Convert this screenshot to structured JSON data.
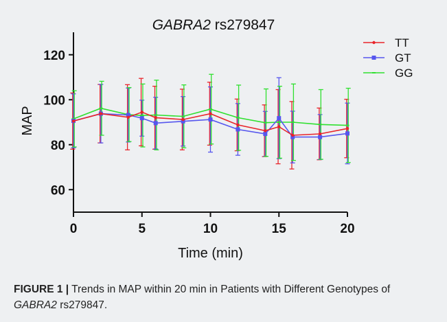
{
  "chart_data": {
    "type": "line",
    "title_gene": "GABRA2",
    "title_rest": " rs279847",
    "xlabel": "Time (min)",
    "ylabel": "MAP",
    "xlim": [
      0,
      20
    ],
    "ylim": [
      50,
      130
    ],
    "xticks": [
      0,
      5,
      10,
      15,
      20
    ],
    "yticks": [
      60,
      80,
      100,
      120
    ],
    "grid": false,
    "legend_position": "top-right",
    "series": [
      {
        "name": "TT",
        "color": "#e8242a",
        "marker": "dot",
        "x": [
          0,
          2,
          4,
          5,
          6,
          8,
          10,
          12,
          14,
          15,
          16,
          18,
          20
        ],
        "y": [
          90.5,
          93.8,
          92.2,
          94.5,
          92.0,
          91.2,
          93.8,
          88.8,
          86.2,
          88.0,
          84.2,
          84.8,
          87.2
        ],
        "err": [
          12.5,
          13.0,
          14.5,
          15.0,
          14.0,
          13.5,
          14.0,
          11.5,
          11.5,
          16.5,
          15.0,
          11.5,
          13.0
        ]
      },
      {
        "name": "GT",
        "color": "#5656ee",
        "marker": "square",
        "x": [
          0,
          2,
          4,
          5,
          6,
          8,
          10,
          12,
          14,
          15,
          16,
          18,
          20
        ],
        "y": [
          90.6,
          93.8,
          93.2,
          91.8,
          89.6,
          90.4,
          91.2,
          86.8,
          84.8,
          91.8,
          83.4,
          83.4,
          85.0
        ],
        "err": [
          12.0,
          13.0,
          12.0,
          8.0,
          11.5,
          11.0,
          14.5,
          11.5,
          10.0,
          18.0,
          11.5,
          10.0,
          13.5
        ]
      },
      {
        "name": "GG",
        "color": "#2fe02f",
        "marker": "dash",
        "x": [
          0,
          2,
          4,
          5,
          6,
          8,
          10,
          12,
          14,
          15,
          16,
          18,
          20
        ],
        "y": [
          91.5,
          96.2,
          93.4,
          93.0,
          93.2,
          92.6,
          95.8,
          92.0,
          89.8,
          90.0,
          90.0,
          89.0,
          88.6
        ],
        "err": [
          12.5,
          12.0,
          12.0,
          14.0,
          15.5,
          14.0,
          15.5,
          14.5,
          15.0,
          16.0,
          17.0,
          15.5,
          16.5
        ]
      }
    ]
  },
  "caption": {
    "label": "FIGURE 1 |",
    "text_before": " Trends in MAP within 20 min in Patients with Different Genotypes of ",
    "gene": "GABRA2",
    "text_after": " rs279847."
  }
}
